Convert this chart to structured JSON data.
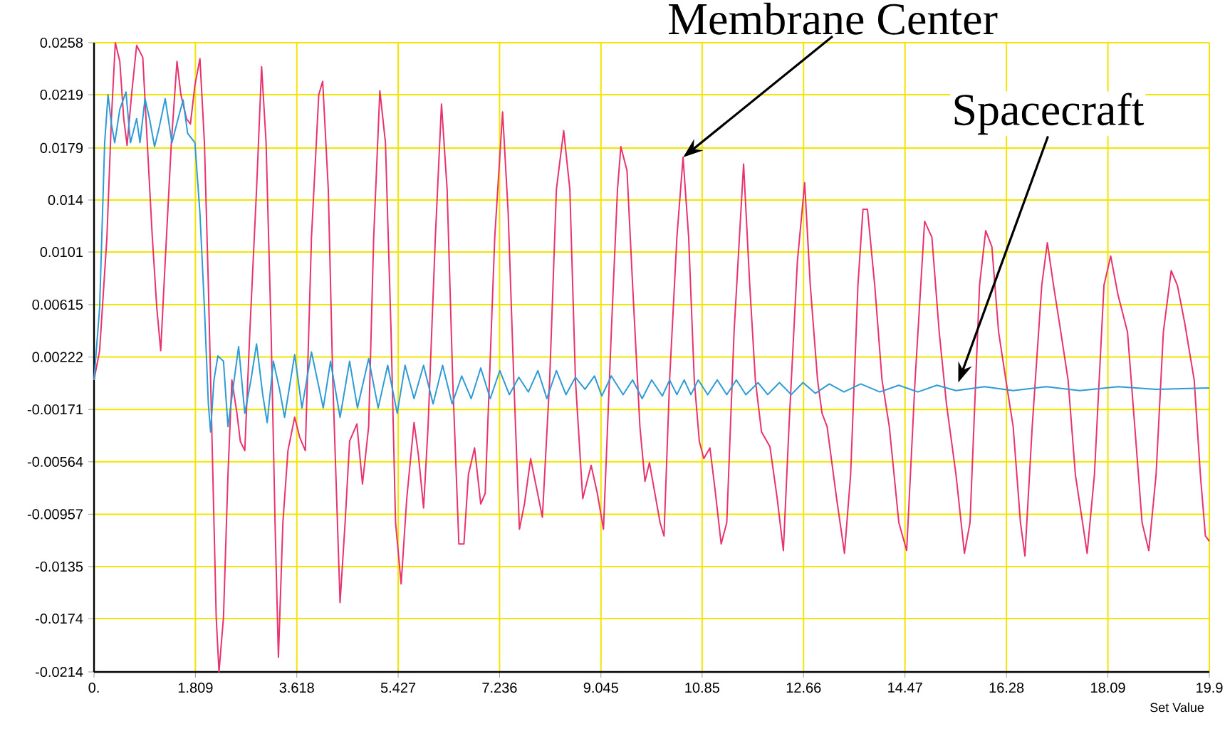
{
  "chart_data": {
    "type": "line",
    "xlabel": "Set Value",
    "xlim": [
      0,
      19.9
    ],
    "ylim": [
      -0.0214,
      0.0258
    ],
    "xticks": [
      {
        "value": 0,
        "label": "0."
      },
      1.809,
      3.618,
      5.427,
      7.236,
      9.045,
      10.85,
      12.66,
      14.47,
      16.28,
      18.09,
      19.9
    ],
    "yticks": [
      -0.0214,
      -0.0174,
      -0.0135,
      -0.00957,
      -0.00564,
      -0.00171,
      0.00222,
      0.00615,
      0.0101,
      0.014,
      0.0179,
      0.0219,
      0.0258
    ],
    "grid": true,
    "marker": "none",
    "line_style": "solid",
    "annotations": [
      {
        "text": "Membrane Center",
        "x": 10.51,
        "y": 0.0172
      },
      {
        "text": "Spacecraft",
        "x": 15.42,
        "y": 0.0003
      }
    ],
    "series": [
      {
        "color": "#e8336f",
        "x": [
          0,
          0.1,
          0.23,
          0.31,
          0.38,
          0.46,
          0.53,
          0.59,
          0.67,
          0.76,
          0.87,
          0.95,
          1.04,
          1.12,
          1.19,
          1.27,
          1.38,
          1.48,
          1.55,
          1.65,
          1.72,
          1.8,
          1.89,
          1.97,
          2.04,
          2.1,
          2.18,
          2.23,
          2.31,
          2.39,
          2.46,
          2.55,
          2.61,
          2.69,
          2.78,
          2.9,
          2.99,
          3.07,
          3.16,
          3.23,
          3.29,
          3.37,
          3.46,
          3.58,
          3.67,
          3.77,
          3.88,
          4.01,
          4.08,
          4.18,
          4.26,
          4.39,
          4.48,
          4.56,
          4.69,
          4.79,
          4.9,
          4.99,
          5.1,
          5.2,
          5.3,
          5.38,
          5.48,
          5.58,
          5.71,
          5.79,
          5.88,
          5.96,
          6.09,
          6.2,
          6.3,
          6.4,
          6.51,
          6.6,
          6.68,
          6.79,
          6.9,
          6.98,
          7.15,
          7.29,
          7.39,
          7.49,
          7.59,
          7.68,
          7.79,
          7.9,
          8.0,
          8.13,
          8.25,
          8.38,
          8.49,
          8.59,
          8.72,
          8.87,
          8.98,
          9.09,
          9.23,
          9.34,
          9.4,
          9.51,
          9.61,
          9.74,
          9.83,
          9.91,
          10.1,
          10.17,
          10.27,
          10.4,
          10.51,
          10.61,
          10.71,
          10.8,
          10.88,
          10.99,
          11.08,
          11.19,
          11.29,
          11.42,
          11.59,
          11.7,
          11.8,
          11.91,
          12.06,
          12.19,
          12.3,
          12.4,
          12.55,
          12.68,
          12.78,
          12.91,
          12.99,
          13.08,
          13.25,
          13.39,
          13.5,
          13.63,
          13.72,
          13.8,
          13.93,
          14.06,
          14.19,
          14.36,
          14.5,
          14.65,
          14.82,
          14.95,
          15.08,
          15.21,
          15.38,
          15.53,
          15.63,
          15.8,
          15.91,
          16.02,
          16.14,
          16.27,
          16.4,
          16.53,
          16.61,
          16.74,
          16.91,
          17.01,
          17.12,
          17.25,
          17.38,
          17.51,
          17.72,
          17.85,
          18.02,
          18.14,
          18.27,
          18.44,
          18.57,
          18.7,
          18.82,
          18.95,
          19.08,
          19.22,
          19.33,
          19.46,
          19.63,
          19.74,
          19.83,
          19.9
        ],
        "values": [
          0.0005,
          0.0027,
          0.0112,
          0.0201,
          0.0258,
          0.0244,
          0.0201,
          0.0181,
          0.0219,
          0.0256,
          0.0247,
          0.0183,
          0.0112,
          0.0059,
          0.0027,
          0.0094,
          0.0183,
          0.0244,
          0.0219,
          0.0201,
          0.0197,
          0.0226,
          0.0246,
          0.0183,
          0.0076,
          -0.003,
          -0.0173,
          -0.0214,
          -0.0173,
          -0.0066,
          0.0005,
          -0.002,
          -0.0041,
          -0.0048,
          0.0041,
          0.0148,
          0.024,
          0.0183,
          0.0041,
          -0.0102,
          -0.0203,
          -0.0102,
          -0.0048,
          -0.0023,
          -0.0038,
          -0.0048,
          0.0112,
          0.0219,
          0.0229,
          0.0148,
          0.0005,
          -0.0162,
          -0.0102,
          -0.0041,
          -0.0028,
          -0.0073,
          -0.003,
          0.0112,
          0.0222,
          0.0183,
          0.0041,
          -0.0102,
          -0.0148,
          -0.0084,
          -0.0027,
          -0.0052,
          -0.0091,
          -0.003,
          0.0112,
          0.0212,
          0.0148,
          0.0005,
          -0.0118,
          -0.0118,
          -0.0066,
          -0.0046,
          -0.0088,
          -0.008,
          0.0112,
          0.0206,
          0.013,
          0.0005,
          -0.0107,
          -0.0088,
          -0.0054,
          -0.0077,
          -0.0098,
          0.0005,
          0.0148,
          0.0192,
          0.0148,
          0.0005,
          -0.0084,
          -0.0059,
          -0.008,
          -0.0107,
          0.0041,
          0.0148,
          0.018,
          0.0162,
          0.0076,
          -0.003,
          -0.0071,
          -0.0057,
          -0.0102,
          -0.0112,
          0.0005,
          0.0112,
          0.0172,
          0.0112,
          0.0005,
          -0.0041,
          -0.0054,
          -0.0046,
          -0.0077,
          -0.0118,
          -0.0102,
          0.0041,
          0.0167,
          0.0076,
          0.0005,
          -0.0034,
          -0.0045,
          -0.0084,
          -0.0123,
          -0.003,
          0.0094,
          0.0153,
          0.0076,
          0.0005,
          -0.002,
          -0.003,
          -0.0084,
          -0.0125,
          -0.0066,
          0.0076,
          0.0133,
          0.0133,
          0.0076,
          0.0005,
          -0.003,
          -0.0102,
          -0.0123,
          0.0005,
          0.0124,
          0.0112,
          0.0041,
          -0.0013,
          -0.0066,
          -0.0125,
          -0.0102,
          0.0076,
          0.0117,
          0.0105,
          0.0041,
          0.0005,
          -0.003,
          -0.0102,
          -0.0127,
          -0.003,
          0.0076,
          0.0108,
          0.0076,
          0.0041,
          0.0005,
          -0.0066,
          -0.0125,
          -0.0066,
          0.0076,
          0.0098,
          0.0069,
          0.0041,
          -0.003,
          -0.0102,
          -0.0123,
          -0.0066,
          0.0041,
          0.0087,
          0.0076,
          0.0048,
          0.0005,
          -0.0066,
          -0.0112,
          -0.0116
        ]
      },
      {
        "color": "#2e9bd6",
        "x": [
          0,
          0.1,
          0.19,
          0.25,
          0.31,
          0.37,
          0.46,
          0.57,
          0.65,
          0.76,
          0.82,
          0.91,
          0.99,
          1.08,
          1.16,
          1.27,
          1.39,
          1.5,
          1.59,
          1.67,
          1.8,
          1.89,
          1.97,
          2.04,
          2.08,
          2.14,
          2.21,
          2.31,
          2.39,
          2.5,
          2.58,
          2.69,
          2.8,
          2.9,
          3.01,
          3.09,
          3.2,
          3.31,
          3.4,
          3.58,
          3.71,
          3.88,
          4.09,
          4.22,
          4.39,
          4.56,
          4.7,
          4.9,
          5.07,
          5.24,
          5.41,
          5.55,
          5.71,
          5.88,
          6.05,
          6.22,
          6.39,
          6.56,
          6.73,
          6.9,
          7.07,
          7.24,
          7.41,
          7.58,
          7.75,
          7.92,
          8.08,
          8.25,
          8.42,
          8.59,
          8.76,
          8.93,
          9.06,
          9.23,
          9.44,
          9.61,
          9.78,
          9.95,
          10.14,
          10.27,
          10.4,
          10.53,
          10.65,
          10.78,
          10.95,
          11.12,
          11.29,
          11.46,
          11.63,
          11.85,
          12.02,
          12.23,
          12.44,
          12.65,
          12.87,
          13.12,
          13.38,
          13.68,
          14.02,
          14.36,
          14.7,
          15.04,
          15.38,
          15.89,
          16.4,
          16.99,
          17.59,
          18.27,
          18.95,
          19.9
        ],
        "values": [
          0.0005,
          0.0059,
          0.0183,
          0.0219,
          0.0197,
          0.0183,
          0.0208,
          0.0221,
          0.0183,
          0.0201,
          0.0183,
          0.0216,
          0.0201,
          0.018,
          0.0194,
          0.0216,
          0.0183,
          0.0201,
          0.0215,
          0.019,
          0.0183,
          0.013,
          0.0059,
          -0.0013,
          -0.0034,
          0.0005,
          0.0023,
          0.0019,
          -0.003,
          0.0005,
          0.003,
          -0.002,
          0.0005,
          0.0032,
          -0.0006,
          -0.0027,
          0.0019,
          -0.0002,
          -0.0023,
          0.0024,
          -0.0016,
          0.0026,
          -0.0016,
          0.0019,
          -0.0023,
          0.0019,
          -0.0016,
          0.0021,
          -0.0016,
          0.0016,
          -0.002,
          0.0016,
          -0.0009,
          0.0016,
          -0.0013,
          0.0016,
          -0.0013,
          0.0008,
          -0.0009,
          0.0014,
          -0.0009,
          0.0012,
          -0.0006,
          0.0007,
          -0.0004,
          0.0012,
          -0.0009,
          0.0012,
          -0.0006,
          0.0007,
          -0.0002,
          0.0008,
          -0.0007,
          0.0008,
          -0.0006,
          0.0005,
          -0.0009,
          0.0005,
          -0.0007,
          0.0005,
          -0.0006,
          0.0005,
          -0.0006,
          0.0005,
          -0.0006,
          0.0005,
          -0.0006,
          0.0005,
          -0.0006,
          0.0003,
          -0.0006,
          0.0003,
          -0.0006,
          0.0003,
          -0.0005,
          0.0002,
          -0.0004,
          0.0002,
          -0.0004,
          0.0001,
          -0.0004,
          0.0001,
          -0.0003,
          -0.0,
          -0.0003,
          0.0,
          -0.0003,
          0.0,
          -0.0002,
          -0.0001
        ]
      }
    ]
  }
}
